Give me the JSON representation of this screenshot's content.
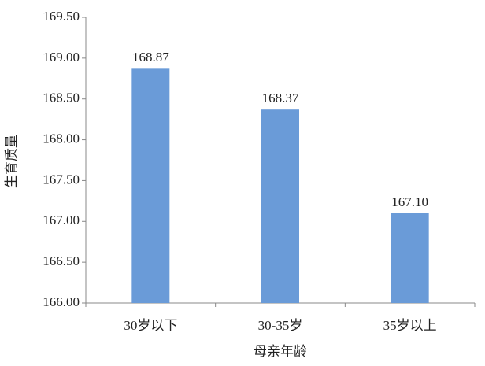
{
  "chart_data": {
    "type": "bar",
    "x_label": "母亲年龄",
    "y_label": "生育质量",
    "categories": [
      "30岁以下",
      "30-35岁",
      "35岁以上"
    ],
    "values": [
      168.87,
      168.37,
      167.1
    ],
    "value_labels": [
      "168.87",
      "168.37",
      "167.10"
    ],
    "color": "#6a9bd8",
    "ylim": [
      166,
      169.5
    ],
    "yticks": [
      {
        "value": 166,
        "label": "166.00"
      },
      {
        "value": 166.5,
        "label": "166.50"
      },
      {
        "value": 167,
        "label": "167.00"
      },
      {
        "value": 167.5,
        "label": "167.50"
      },
      {
        "value": 168,
        "label": "168.00"
      },
      {
        "value": 168.5,
        "label": "168.50"
      },
      {
        "value": 169,
        "label": "169.00"
      },
      {
        "value": 169.5,
        "label": "169.50"
      }
    ],
    "grid": false
  }
}
